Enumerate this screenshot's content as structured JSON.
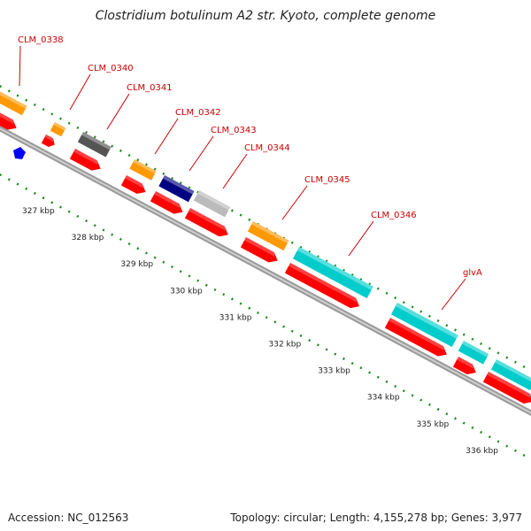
{
  "title": "Clostridium botulinum A2 str. Kyoto, complete genome",
  "colors": {
    "cds": "#ff0000",
    "label": "#cc0000",
    "backbone": "#888888",
    "ticks": "#1a8a1a",
    "orange": "#ff9900",
    "gray": "#555555",
    "navy": "#000080",
    "silver": "#bbbbbb",
    "cyan": "#00cccc",
    "steel": "#5b8ab8",
    "blue": "#0000ff"
  },
  "genes": [
    {
      "label": "CLM_0338"
    },
    {
      "label": "CLM_0340"
    },
    {
      "label": "CLM_0341"
    },
    {
      "label": "CLM_0342"
    },
    {
      "label": "CLM_0343"
    },
    {
      "label": "CLM_0344"
    },
    {
      "label": "CLM_0345"
    },
    {
      "label": "CLM_0346"
    },
    {
      "label": "glvA"
    }
  ],
  "ticks": [
    "327 kbp",
    "328 kbp",
    "329 kbp",
    "330 kbp",
    "331 kbp",
    "332 kbp",
    "333 kbp",
    "334 kbp",
    "335 kbp",
    "336 kbp"
  ],
  "footer": {
    "accession": "Accession: NC_012563",
    "topology": "Topology: circular; Length: 4,155,278 bp; Genes: 3,977"
  }
}
